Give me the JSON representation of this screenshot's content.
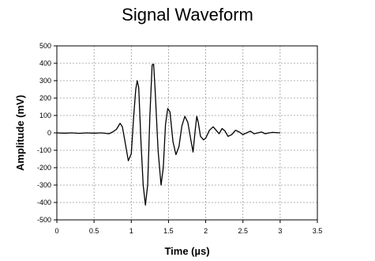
{
  "chart_data": {
    "type": "line",
    "title": "Signal Waveform",
    "xlabel": "Time (µs)",
    "ylabel": "Amplitude (mV)",
    "xlim": [
      0,
      3.5
    ],
    "ylim": [
      -500,
      500
    ],
    "x_ticks": [
      "0",
      "0.5",
      "1",
      "1.5",
      "2",
      "2.5",
      "3",
      "3.5"
    ],
    "y_ticks": [
      "500",
      "400",
      "300",
      "200",
      "100",
      "0",
      "-100",
      "-200",
      "-300",
      "-400",
      "-500"
    ],
    "grid": true,
    "legend": "none",
    "series": [
      {
        "color": "#000000",
        "points": [
          [
            0.0,
            0
          ],
          [
            0.1,
            -2
          ],
          [
            0.2,
            0
          ],
          [
            0.3,
            -3
          ],
          [
            0.4,
            0
          ],
          [
            0.5,
            -2
          ],
          [
            0.6,
            0
          ],
          [
            0.7,
            -5
          ],
          [
            0.75,
            5
          ],
          [
            0.8,
            20
          ],
          [
            0.85,
            55
          ],
          [
            0.88,
            35
          ],
          [
            0.92,
            -60
          ],
          [
            0.96,
            -160
          ],
          [
            1.0,
            -120
          ],
          [
            1.03,
            80
          ],
          [
            1.06,
            250
          ],
          [
            1.08,
            300
          ],
          [
            1.1,
            260
          ],
          [
            1.13,
            -50
          ],
          [
            1.16,
            -300
          ],
          [
            1.19,
            -415
          ],
          [
            1.22,
            -300
          ],
          [
            1.25,
            100
          ],
          [
            1.28,
            390
          ],
          [
            1.3,
            395
          ],
          [
            1.32,
            250
          ],
          [
            1.36,
            -100
          ],
          [
            1.4,
            -300
          ],
          [
            1.43,
            -200
          ],
          [
            1.46,
            50
          ],
          [
            1.49,
            140
          ],
          [
            1.52,
            120
          ],
          [
            1.56,
            -50
          ],
          [
            1.6,
            -125
          ],
          [
            1.64,
            -80
          ],
          [
            1.68,
            40
          ],
          [
            1.72,
            95
          ],
          [
            1.76,
            60
          ],
          [
            1.8,
            -40
          ],
          [
            1.83,
            -110
          ],
          [
            1.86,
            20
          ],
          [
            1.88,
            95
          ],
          [
            1.9,
            60
          ],
          [
            1.93,
            -20
          ],
          [
            1.97,
            -40
          ],
          [
            2.0,
            -30
          ],
          [
            2.05,
            15
          ],
          [
            2.1,
            35
          ],
          [
            2.15,
            10
          ],
          [
            2.18,
            -5
          ],
          [
            2.22,
            25
          ],
          [
            2.26,
            10
          ],
          [
            2.3,
            -20
          ],
          [
            2.35,
            -10
          ],
          [
            2.4,
            15
          ],
          [
            2.45,
            5
          ],
          [
            2.5,
            -10
          ],
          [
            2.55,
            0
          ],
          [
            2.6,
            10
          ],
          [
            2.65,
            -5
          ],
          [
            2.7,
            0
          ],
          [
            2.75,
            5
          ],
          [
            2.8,
            -5
          ],
          [
            2.85,
            0
          ],
          [
            2.9,
            3
          ],
          [
            3.0,
            0
          ]
        ]
      }
    ]
  }
}
